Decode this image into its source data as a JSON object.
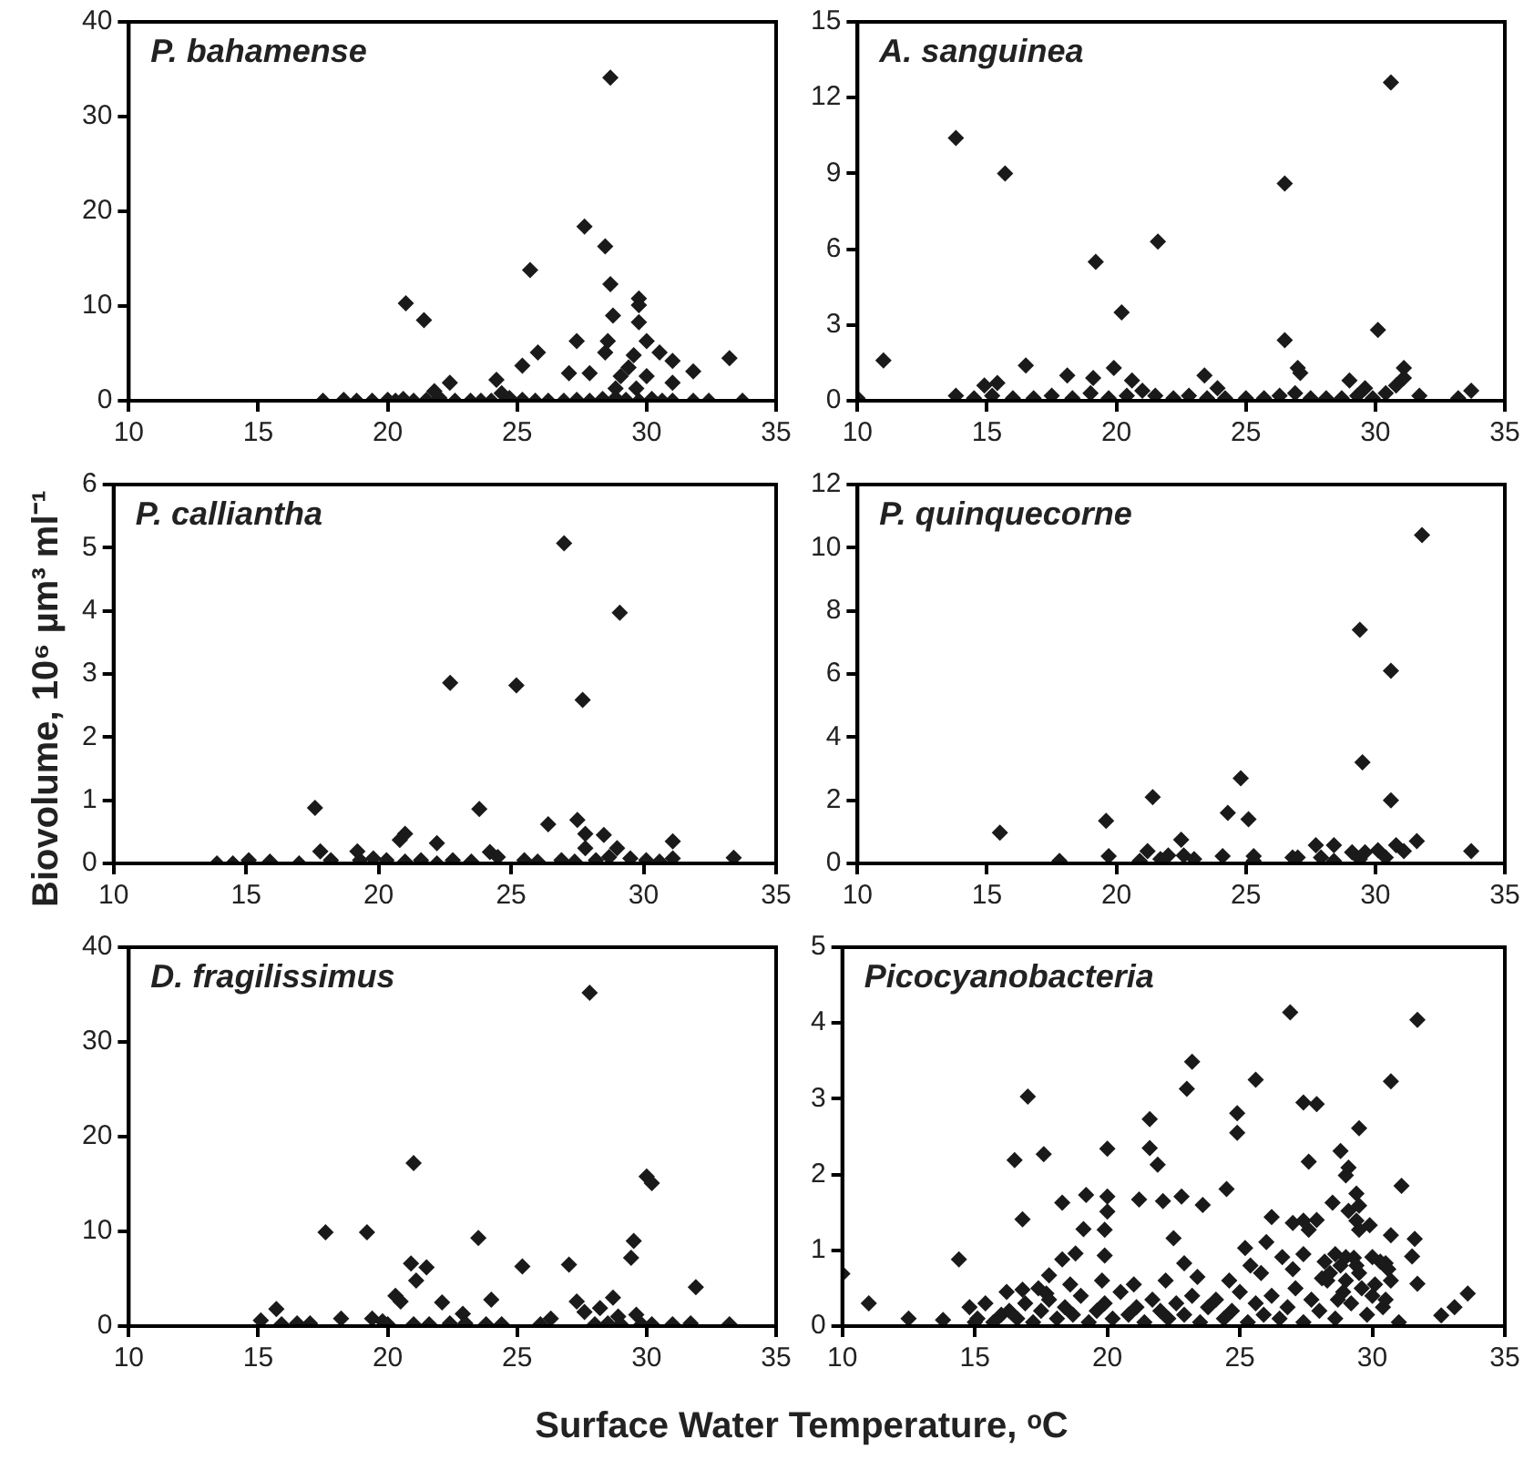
{
  "chart_data": [
    {
      "type": "scatter",
      "title": "P. bahamense",
      "xlim": [
        10,
        35
      ],
      "xticks": [
        10,
        15,
        20,
        25,
        30,
        35
      ],
      "ylim": [
        0,
        40
      ],
      "yticks": [
        0,
        10,
        20,
        30,
        40
      ],
      "grid": false,
      "legend": false,
      "marker": "diamond",
      "series": [
        {
          "color": "#1a1a1a",
          "x": [
            28.6,
            27.6,
            28.4,
            25.5,
            20.7,
            21.4,
            28.6,
            29.7,
            29.7,
            28.7,
            29.7,
            27.3,
            28.5,
            30.0,
            25.8,
            28.4,
            29.5,
            30.5,
            31.0,
            33.2,
            25.2,
            24.2,
            22.4,
            27.0,
            27.8,
            29.3,
            29.0,
            30.0,
            31.8,
            31.0,
            29.6,
            28.8,
            21.8,
            24.4,
            17.5,
            18.3,
            18.8,
            19.4,
            20.0,
            20.3,
            20.6,
            21.0,
            21.5,
            22.0,
            22.6,
            23.2,
            23.6,
            24.0,
            24.7,
            25.2,
            25.7,
            26.2,
            26.8,
            27.3,
            27.8,
            28.3,
            28.8,
            29.2,
            29.7,
            30.2,
            30.6,
            31.0,
            31.8,
            32.4,
            33.7
          ],
          "values": [
            34.1,
            18.4,
            16.3,
            13.8,
            10.3,
            8.5,
            12.3,
            10.8,
            10.1,
            9.0,
            8.3,
            6.3,
            6.3,
            6.3,
            5.1,
            5.1,
            4.8,
            5.1,
            4.2,
            4.5,
            3.7,
            2.2,
            1.9,
            2.9,
            2.9,
            3.5,
            2.6,
            2.6,
            3.1,
            1.9,
            1.3,
            1.3,
            1.0,
            0.8,
            0,
            0.1,
            0,
            0,
            0.1,
            0,
            0.2,
            0,
            0.1,
            0.3,
            0,
            0,
            0,
            0,
            0.3,
            0.1,
            0,
            0,
            0,
            0.1,
            0,
            0.2,
            0.3,
            0.1,
            0,
            0.2,
            0,
            0,
            0,
            0,
            0
          ]
        }
      ]
    },
    {
      "type": "scatter",
      "title": "A. sanguinea",
      "xlim": [
        10,
        35
      ],
      "xticks": [
        10,
        15,
        20,
        25,
        30,
        35
      ],
      "ylim": [
        0,
        15
      ],
      "yticks": [
        0,
        3,
        6,
        9,
        12,
        15
      ],
      "grid": false,
      "legend": false,
      "marker": "diamond",
      "series": [
        {
          "color": "#1a1a1a",
          "x": [
            11.0,
            10.0,
            13.8,
            15.7,
            26.5,
            21.6,
            19.2,
            20.2,
            30.6,
            26.5,
            30.1,
            16.5,
            18.1,
            19.1,
            19.9,
            20.6,
            23.4,
            23.9,
            27.0,
            27.1,
            29.0,
            29.6,
            31.1,
            31.1,
            30.8,
            15.4,
            14.9,
            31.7,
            33.2,
            33.7,
            13.8,
            14.5,
            15.2,
            16.0,
            16.8,
            17.5,
            18.3,
            19.0,
            19.7,
            20.4,
            21.0,
            21.5,
            22.2,
            22.8,
            23.5,
            24.2,
            25.0,
            25.7,
            26.3,
            26.9,
            27.5,
            28.1,
            28.7,
            29.3,
            29.9,
            30.4
          ],
          "values": [
            1.6,
            0.1,
            10.4,
            9.0,
            8.6,
            6.3,
            5.5,
            3.5,
            12.6,
            2.4,
            2.8,
            1.4,
            1.0,
            0.9,
            1.3,
            0.8,
            1.0,
            0.5,
            1.3,
            1.1,
            0.8,
            0.5,
            1.3,
            0.9,
            0.6,
            0.7,
            0.6,
            0.2,
            0.1,
            0.4,
            0.2,
            0.1,
            0.2,
            0.1,
            0.1,
            0.2,
            0.1,
            0.3,
            0.1,
            0.2,
            0.4,
            0.2,
            0.1,
            0.2,
            0.1,
            0.1,
            0.1,
            0.1,
            0.2,
            0.3,
            0.1,
            0.1,
            0.1,
            0.2,
            0.1,
            0.3
          ]
        }
      ]
    },
    {
      "type": "scatter",
      "title": "P. calliantha",
      "ylabel": "Biovolume, 10⁶ µm³ ml⁻¹",
      "xlim": [
        10,
        35
      ],
      "xticks": [
        10,
        15,
        20,
        25,
        30,
        35
      ],
      "ylim": [
        0,
        6
      ],
      "yticks": [
        0,
        1,
        2,
        3,
        4,
        5,
        6
      ],
      "grid": false,
      "legend": false,
      "marker": "diamond",
      "series": [
        {
          "color": "#1a1a1a",
          "x": [
            27.0,
            29.1,
            22.7,
            25.2,
            27.7,
            17.6,
            23.8,
            26.4,
            27.5,
            27.8,
            28.5,
            21.0,
            20.8,
            22.2,
            27.8,
            31.1,
            17.8,
            19.2,
            24.2,
            29.0,
            33.4,
            13.9,
            14.5,
            15.1,
            15.9,
            17.0,
            18.2,
            19.3,
            19.8,
            20.3,
            21.0,
            21.6,
            22.2,
            22.8,
            23.5,
            24.5,
            25.5,
            26.0,
            26.9,
            27.4,
            28.2,
            28.7,
            29.5,
            30.1,
            30.6,
            31.1
          ],
          "values": [
            5.07,
            3.97,
            2.86,
            2.82,
            2.59,
            0.88,
            0.86,
            0.62,
            0.69,
            0.47,
            0.45,
            0.47,
            0.37,
            0.32,
            0.24,
            0.35,
            0.19,
            0.19,
            0.18,
            0.24,
            0.09,
            0,
            0,
            0.05,
            0.03,
            0,
            0.05,
            0.05,
            0.08,
            0.05,
            0.03,
            0.05,
            0,
            0.05,
            0.03,
            0.1,
            0.05,
            0.03,
            0.05,
            0.03,
            0.05,
            0.1,
            0.08,
            0.05,
            0.03,
            0.08
          ]
        }
      ]
    },
    {
      "type": "scatter",
      "title": "P. quinquecorne",
      "xlim": [
        10,
        35
      ],
      "xticks": [
        10,
        15,
        20,
        25,
        30,
        35
      ],
      "ylim": [
        0,
        12
      ],
      "yticks": [
        0,
        2,
        4,
        6,
        8,
        10,
        12
      ],
      "grid": false,
      "legend": false,
      "marker": "diamond",
      "series": [
        {
          "color": "#1a1a1a",
          "x": [
            31.8,
            29.4,
            30.6,
            29.5,
            30.6,
            24.8,
            21.4,
            24.3,
            25.1,
            19.6,
            15.5,
            22.5,
            27.7,
            28.4,
            30.8,
            31.6,
            33.7,
            21.2,
            30.1,
            31.1,
            29.1,
            29.6,
            19.7,
            17.8,
            20.9,
            21.7,
            22.0,
            22.6,
            23.0,
            24.1,
            25.3,
            25.3,
            26.8,
            27.0,
            27.9,
            28.4,
            29.4,
            30.4
          ],
          "values": [
            10.4,
            7.4,
            6.1,
            3.2,
            2.0,
            2.7,
            2.1,
            1.6,
            1.4,
            1.35,
            0.97,
            0.75,
            0.58,
            0.58,
            0.58,
            0.71,
            0.39,
            0.39,
            0.42,
            0.39,
            0.35,
            0.35,
            0.23,
            0.08,
            0.08,
            0.14,
            0.25,
            0.25,
            0.14,
            0.23,
            0.23,
            0.08,
            0.19,
            0.19,
            0.19,
            0.08,
            0.14,
            0.19
          ]
        }
      ]
    },
    {
      "type": "scatter",
      "title": "D. fragilissimus",
      "xlabel": "Surface Water Temperature, ᵒC",
      "xlim": [
        10,
        35
      ],
      "xticks": [
        10,
        15,
        20,
        25,
        30,
        35
      ],
      "ylim": [
        0,
        40
      ],
      "yticks": [
        0,
        10,
        20,
        30,
        40
      ],
      "grid": false,
      "legend": false,
      "marker": "diamond",
      "series": [
        {
          "color": "#1a1a1a",
          "x": [
            27.8,
            21.0,
            30.0,
            30.2,
            17.6,
            19.2,
            23.5,
            29.5,
            29.4,
            20.9,
            21.5,
            25.2,
            27.0,
            21.1,
            31.9,
            20.3,
            20.5,
            22.1,
            24.0,
            27.3,
            28.7,
            28.2,
            27.6,
            15.7,
            22.9,
            26.3,
            29.6,
            28.9,
            15.1,
            18.2,
            19.4,
            15.9,
            16.5,
            17.0,
            19.8,
            20.0,
            21.0,
            21.6,
            22.4,
            23.0,
            23.8,
            24.4,
            25.9,
            28.0,
            28.5,
            29.0,
            29.8,
            30.2,
            31.0,
            31.7,
            33.2
          ],
          "values": [
            35.2,
            17.2,
            15.8,
            15.1,
            9.9,
            9.9,
            9.3,
            9.0,
            7.2,
            6.6,
            6.2,
            6.3,
            6.5,
            4.8,
            4.1,
            3.2,
            2.6,
            2.5,
            2.8,
            2.6,
            3.0,
            1.9,
            1.5,
            1.8,
            1.3,
            0.8,
            1.2,
            1.0,
            0.6,
            0.8,
            0.8,
            0.2,
            0.3,
            0.3,
            0.5,
            0.2,
            0.2,
            0.2,
            0.3,
            0.3,
            0.2,
            0.2,
            0.2,
            0.2,
            0.3,
            0.2,
            0.2,
            0.2,
            0.2,
            0.3,
            0.2
          ]
        }
      ]
    },
    {
      "type": "scatter",
      "title": "Picocyanobacteria",
      "xlim": [
        10,
        35
      ],
      "xticks": [
        10,
        15,
        20,
        25,
        30,
        35
      ],
      "ylim": [
        0,
        5
      ],
      "yticks": [
        0,
        1,
        2,
        3,
        4,
        5
      ],
      "grid": false,
      "legend": false,
      "marker": "diamond",
      "series": [
        {
          "color": "#1a1a1a",
          "x": [
            10.0,
            11.0,
            12.5,
            13.8,
            14.4,
            16.5,
            17.0,
            16.8,
            17.6,
            16.8,
            17.7,
            18.3,
            19.2,
            19.1,
            20.0,
            20.0,
            20.0,
            19.9,
            19.9,
            18.8,
            18.3,
            17.8,
            21.6,
            21.6,
            21.9,
            21.2,
            22.1,
            23.0,
            23.2,
            22.8,
            23.6,
            22.5,
            22.9,
            24.5,
            24.9,
            24.9,
            25.6,
            25.2,
            25.4,
            26.0,
            26.2,
            26.9,
            27.4,
            27.9,
            27.6,
            27.0,
            27.4,
            27.9,
            27.6,
            27.4,
            26.6,
            28.1,
            28.8,
            29.5,
            29.1,
            29.0,
            28.5,
            29.4,
            29.5,
            29.1,
            29.4,
            29.5,
            29.9,
            30.7,
            31.1,
            31.7,
            31.6,
            30.7,
            31.5,
            31.7,
            32.6,
            33.1,
            33.6,
            28.6,
            29.0,
            30.0,
            30.5,
            14.8,
            15.1,
            15.4,
            15.7,
            16.0,
            16.3,
            16.6,
            16.9,
            17.2,
            17.5,
            17.8,
            18.1,
            18.4,
            18.7,
            19.0,
            19.3,
            19.6,
            19.9,
            20.2,
            20.5,
            20.8,
            21.1,
            21.4,
            21.7,
            22.0,
            22.3,
            22.6,
            22.9,
            23.2,
            23.5,
            23.8,
            24.1,
            24.4,
            24.7,
            25.0,
            25.3,
            25.6,
            25.9,
            26.2,
            26.5,
            26.8,
            27.1,
            27.4,
            27.7,
            28.0,
            28.3,
            28.6,
            28.9,
            29.2,
            29.5,
            29.8,
            30.1,
            30.4,
            30.7,
            31.0,
            15.0,
            16.2,
            17.4,
            18.6,
            19.8,
            21.0,
            22.2,
            23.4,
            24.6,
            25.8,
            27.0,
            28.2,
            29.4,
            30.6,
            28.4,
            28.8,
            29.0,
            29.6,
            30.0,
            30.3,
            30.5,
            29.3,
            28.7
          ],
          "values": [
            0.69,
            0.3,
            0.1,
            0.08,
            0.88,
            2.19,
            3.03,
            1.41,
            2.27,
            0.48,
            0.43,
            1.63,
            1.73,
            1.28,
            2.34,
            1.71,
            1.51,
            1.27,
            0.93,
            0.96,
            0.88,
            0.67,
            2.73,
            2.35,
            2.13,
            1.67,
            1.65,
            3.13,
            3.49,
            1.71,
            1.6,
            1.16,
            0.83,
            1.81,
            2.81,
            2.55,
            3.25,
            1.03,
            0.8,
            1.11,
            1.44,
            4.14,
            2.95,
            2.93,
            2.17,
            1.36,
            1.39,
            1.4,
            1.27,
            0.95,
            0.91,
            0.63,
            2.31,
            2.61,
            2.09,
            1.99,
            1.63,
            1.75,
            1.59,
            1.52,
            1.39,
            1.27,
            1.33,
            3.23,
            1.85,
            4.04,
            1.15,
            1.2,
            0.92,
            0.56,
            0.14,
            0.25,
            0.43,
            0.95,
            0.91,
            0.91,
            0.83,
            0.25,
            0.1,
            0.3,
            0.05,
            0.15,
            0.2,
            0.1,
            0.3,
            0.05,
            0.2,
            0.35,
            0.1,
            0.25,
            0.15,
            0.4,
            0.05,
            0.2,
            0.3,
            0.1,
            0.45,
            0.15,
            0.25,
            0.05,
            0.35,
            0.2,
            0.1,
            0.3,
            0.15,
            0.4,
            0.05,
            0.25,
            0.35,
            0.1,
            0.2,
            0.45,
            0.05,
            0.3,
            0.15,
            0.4,
            0.1,
            0.25,
            0.5,
            0.05,
            0.35,
            0.2,
            0.6,
            0.1,
            0.45,
            0.3,
            0.7,
            0.15,
            0.55,
            0.25,
            0.6,
            0.05,
            0.05,
            0.45,
            0.5,
            0.55,
            0.6,
            0.55,
            0.6,
            0.65,
            0.6,
            0.7,
            0.75,
            0.85,
            0.8,
            0.75,
            0.7,
            0.8,
            0.6,
            0.5,
            0.4,
            0.85,
            0.35,
            0.9,
            0.35
          ]
        }
      ]
    }
  ]
}
